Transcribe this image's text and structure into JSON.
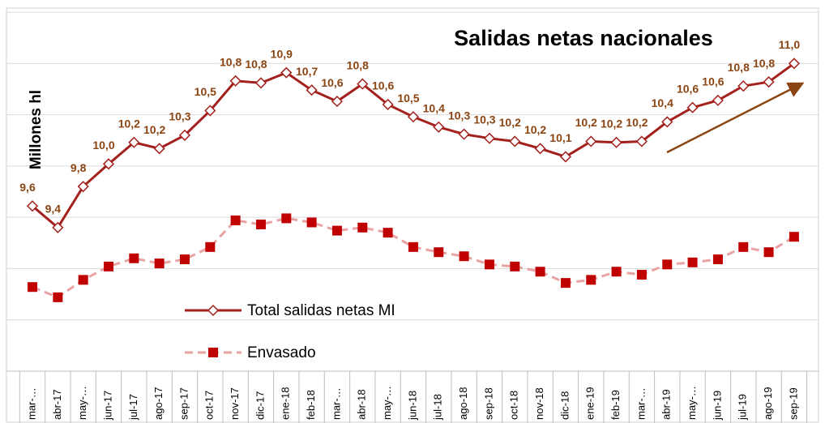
{
  "chart_data": {
    "type": "line",
    "title": "Salidas netas nacionales",
    "y_label": "Millones hl",
    "categories": [
      "mar-…",
      "abr-17",
      "may-…",
      "jun-17",
      "jul-17",
      "ago-17",
      "sep-17",
      "oct-17",
      "nov-17",
      "dic-17",
      "ene-18",
      "feb-18",
      "mar-…",
      "abr-18",
      "may-…",
      "jun-18",
      "jul-18",
      "ago-18",
      "sep-18",
      "oct-18",
      "nov-18",
      "dic-18",
      "ene-19",
      "feb-19",
      "mar-…",
      "abr-19",
      "may-…",
      "jun-19",
      "jul-19",
      "ago-19",
      "sep-19"
    ],
    "series": [
      {
        "name": "Total salidas netas MI",
        "color": "#a3201c",
        "marker": "diamond",
        "values": [
          9.61,
          9.4,
          9.8,
          10.02,
          10.23,
          10.17,
          10.3,
          10.54,
          10.83,
          10.81,
          10.91,
          10.74,
          10.63,
          10.8,
          10.6,
          10.48,
          10.38,
          10.31,
          10.27,
          10.24,
          10.17,
          10.09,
          10.24,
          10.23,
          10.24,
          10.43,
          10.57,
          10.64,
          10.78,
          10.82,
          11.0
        ],
        "value_labels": [
          "9,6",
          "9,4",
          "9,8",
          "10,0",
          "10,2",
          "10,2",
          "10,3",
          "10,5",
          "10,8",
          "10,8",
          "10,9",
          "10,7",
          "10,6",
          "10,8",
          "10,6",
          "10,5",
          "10,4",
          "10,3",
          "10,3",
          "10,2",
          "10,2",
          "10,1",
          "10,2",
          "10,2",
          "10,2",
          "10,4",
          "10,6",
          "10,6",
          "10,8",
          "10,8",
          "11,0"
        ]
      },
      {
        "name": "Envasado",
        "color": "#c00000",
        "line_color": "#e9a3a3",
        "marker": "square",
        "dashed": true,
        "values": [
          8.82,
          8.72,
          8.89,
          9.02,
          9.1,
          9.05,
          9.09,
          9.21,
          9.47,
          9.43,
          9.49,
          9.45,
          9.37,
          9.4,
          9.35,
          9.21,
          9.16,
          9.12,
          9.04,
          9.02,
          8.97,
          8.86,
          8.89,
          8.97,
          8.94,
          9.04,
          9.06,
          9.09,
          9.21,
          9.16,
          9.31
        ]
      }
    ],
    "ylim": [
      8,
      11.5
    ],
    "yticks": [
      8,
      8.5,
      9,
      9.5,
      10,
      10.5,
      11,
      11.5
    ],
    "grid": true,
    "label_color": "#8b4513"
  }
}
